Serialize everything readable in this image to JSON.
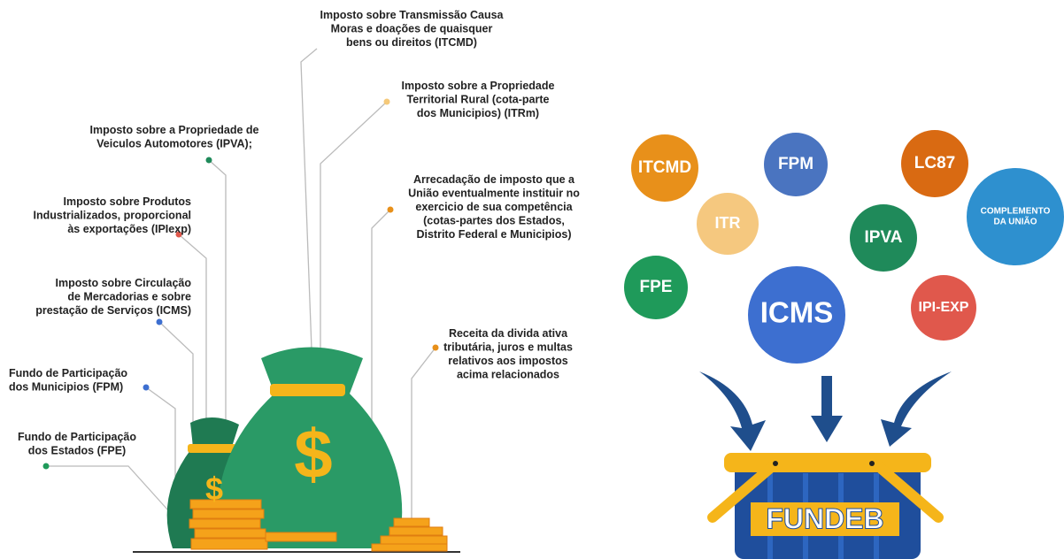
{
  "labels": [
    {
      "lines": [
        "Imposto sobre Transmissão Causa",
        "Moras e doações de quaisquer",
        "bens ou direitos (ITCMD)"
      ]
    },
    {
      "lines": [
        "Imposto sobre a Propriedade",
        "Territorial Rural (cota-parte",
        "dos Municipios) (ITRm)"
      ]
    },
    {
      "lines": [
        "Imposto sobre a Propriedade de",
        "Veiculos Automotores (IPVA);"
      ]
    },
    {
      "lines": [
        "Imposto sobre Produtos",
        "Industrializados, proporcional",
        "às exportações (IPIexp)"
      ]
    },
    {
      "lines": [
        "Imposto sobre Circulação",
        "de Mercadorias e sobre",
        "prestação de Serviços (ICMS)"
      ]
    },
    {
      "lines": [
        "Fundo de Participação",
        "dos Municipios (FPM)"
      ]
    },
    {
      "lines": [
        "Fundo de Participação",
        "dos Estados (FPE)"
      ]
    },
    {
      "lines": [
        "Arrecadação de imposto que a",
        "União eventualmente instituir no",
        "exercicio de sua competência",
        "(cotas-partes dos Estados,",
        "Distrito Federal e Municipios)"
      ]
    },
    {
      "lines": [
        "Receita da divida ativa",
        "tributária, juros e multas",
        "relativos aos impostos",
        "acima relacionados"
      ]
    }
  ],
  "bag_symbol": "$",
  "circles": [
    {
      "lines": [
        "ITCMD"
      ]
    },
    {
      "lines": [
        "FPM"
      ]
    },
    {
      "lines": [
        "LC87"
      ]
    },
    {
      "lines": [
        "COMPLEMENTO",
        "DA UNIÃO"
      ]
    },
    {
      "lines": [
        "ITR"
      ]
    },
    {
      "lines": [
        "IPVA"
      ]
    },
    {
      "lines": [
        "FPE"
      ]
    },
    {
      "lines": [
        "ICMS"
      ]
    },
    {
      "lines": [
        "IPI-EXP"
      ]
    }
  ],
  "basket_label": "FUNDEB"
}
